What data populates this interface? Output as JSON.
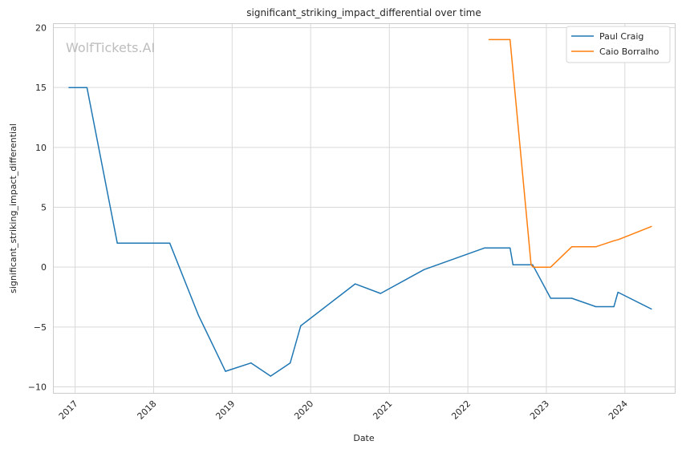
{
  "chart_data": {
    "type": "line",
    "title": "significant_striking_impact_differential over time",
    "xlabel": "Date",
    "ylabel": "significant_striking_impact_differential",
    "watermark": "WolfTickets.AI",
    "xlim": [
      "2016-09-20",
      "2024-08-20"
    ],
    "ylim": [
      -10.5,
      20.3
    ],
    "x_ticks": [
      {
        "date": "2017-01-01",
        "label": "2017"
      },
      {
        "date": "2018-01-01",
        "label": "2018"
      },
      {
        "date": "2019-01-01",
        "label": "2019"
      },
      {
        "date": "2020-01-01",
        "label": "2020"
      },
      {
        "date": "2021-01-01",
        "label": "2021"
      },
      {
        "date": "2022-01-01",
        "label": "2022"
      },
      {
        "date": "2023-01-01",
        "label": "2023"
      },
      {
        "date": "2024-01-01",
        "label": "2024"
      }
    ],
    "y_ticks": [
      {
        "value": 20,
        "label": "20"
      },
      {
        "value": 15,
        "label": "15"
      },
      {
        "value": 10,
        "label": "10"
      },
      {
        "value": 5,
        "label": "5"
      },
      {
        "value": 0,
        "label": "0"
      },
      {
        "value": -5,
        "label": "−5"
      },
      {
        "value": -10,
        "label": "−10"
      }
    ],
    "grid": true,
    "legend_position": "top-right",
    "series": [
      {
        "name": "Paul Craig",
        "color": "#1f77b4",
        "points": [
          {
            "x": "2016-12-03",
            "y": 15.0
          },
          {
            "x": "2017-02-25",
            "y": 15.0
          },
          {
            "x": "2017-07-16",
            "y": 2.0
          },
          {
            "x": "2018-03-17",
            "y": 2.0
          },
          {
            "x": "2018-07-28",
            "y": -4.0
          },
          {
            "x": "2018-12-01",
            "y": -8.7
          },
          {
            "x": "2019-03-30",
            "y": -8.0
          },
          {
            "x": "2019-06-29",
            "y": -9.1
          },
          {
            "x": "2019-09-28",
            "y": -8.0
          },
          {
            "x": "2019-11-16",
            "y": -4.9
          },
          {
            "x": "2020-07-26",
            "y": -1.4
          },
          {
            "x": "2020-11-21",
            "y": -2.2
          },
          {
            "x": "2021-06-12",
            "y": -0.2
          },
          {
            "x": "2022-03-19",
            "y": 1.6
          },
          {
            "x": "2022-07-16",
            "y": 1.6
          },
          {
            "x": "2022-07-30",
            "y": 0.2
          },
          {
            "x": "2022-10-29",
            "y": 0.2
          },
          {
            "x": "2023-01-21",
            "y": -2.6
          },
          {
            "x": "2023-04-29",
            "y": -2.6
          },
          {
            "x": "2023-08-19",
            "y": -3.3
          },
          {
            "x": "2023-11-11",
            "y": -3.3
          },
          {
            "x": "2023-11-30",
            "y": -2.1
          },
          {
            "x": "2024-05-04",
            "y": -3.5
          }
        ]
      },
      {
        "name": "Caio Borralho",
        "color": "#ff7f0e",
        "points": [
          {
            "x": "2022-04-09",
            "y": 19.0
          },
          {
            "x": "2022-07-16",
            "y": 19.0
          },
          {
            "x": "2022-10-22",
            "y": 0.2
          },
          {
            "x": "2022-11-01",
            "y": 0.0
          },
          {
            "x": "2023-01-21",
            "y": 0.0
          },
          {
            "x": "2023-04-29",
            "y": 1.7
          },
          {
            "x": "2023-08-19",
            "y": 1.7
          },
          {
            "x": "2023-11-11",
            "y": 2.2
          },
          {
            "x": "2023-12-02",
            "y": 2.3
          },
          {
            "x": "2024-05-04",
            "y": 3.4
          }
        ]
      }
    ]
  }
}
